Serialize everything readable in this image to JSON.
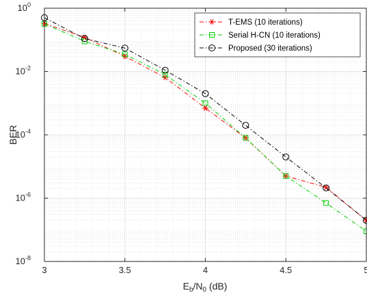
{
  "chart_data": {
    "type": "line",
    "title": "",
    "xlabel": {
      "base": "E",
      "sub1": "b",
      "mid": "/N",
      "sub2": "0",
      "tail": " (dB)"
    },
    "ylabel": "BER",
    "xlim": [
      3,
      5
    ],
    "ylim": [
      1e-08,
      1
    ],
    "yscale": "log",
    "grid": true,
    "minor_grid": true,
    "legend_position": "top-right",
    "x_ticks": [
      {
        "value": 3,
        "label": "3"
      },
      {
        "value": 3.5,
        "label": "3.5"
      },
      {
        "value": 4,
        "label": "4"
      },
      {
        "value": 4.5,
        "label": "4.5"
      },
      {
        "value": 5,
        "label": "5"
      }
    ],
    "y_ticks": [
      {
        "exp": 0,
        "base": "10",
        "sup": "0"
      },
      {
        "exp": -2,
        "base": "10",
        "sup": "-2"
      },
      {
        "exp": -4,
        "base": "10",
        "sup": "-4"
      },
      {
        "exp": -6,
        "base": "10",
        "sup": "-6"
      },
      {
        "exp": -8,
        "base": "10",
        "sup": "-8"
      }
    ],
    "series": [
      {
        "name": "T-EMS (10 iterations)",
        "color": "#ff0000",
        "marker": "asterisk",
        "line_style": "dash-dot",
        "x": [
          3,
          3.25,
          3.5,
          3.75,
          4,
          4.25,
          4.5,
          4.75,
          5
        ],
        "y": [
          0.33,
          0.12,
          0.03,
          0.0065,
          0.0007,
          8e-05,
          5e-06,
          2.2e-06,
          2e-07
        ]
      },
      {
        "name": "Serial H-CN (10 iterations)",
        "color": "#00cc00",
        "marker": "square",
        "line_style": "dash-dot",
        "x": [
          3,
          3.25,
          3.5,
          3.75,
          4,
          4.25,
          4.5,
          4.75,
          5
        ],
        "y": [
          0.32,
          0.09,
          0.035,
          0.008,
          0.001,
          8e-05,
          5e-06,
          7e-07,
          9e-08
        ]
      },
      {
        "name": "Proposed (30 iterations)",
        "color": "#000000",
        "marker": "circle",
        "line_style": "dash-dot",
        "x": [
          3,
          3.25,
          3.5,
          3.75,
          4,
          4.25,
          4.5,
          4.75,
          5
        ],
        "y": [
          0.5,
          0.11,
          0.055,
          0.011,
          0.002,
          0.0002,
          2e-05,
          2.1e-06,
          2e-07
        ]
      }
    ]
  }
}
